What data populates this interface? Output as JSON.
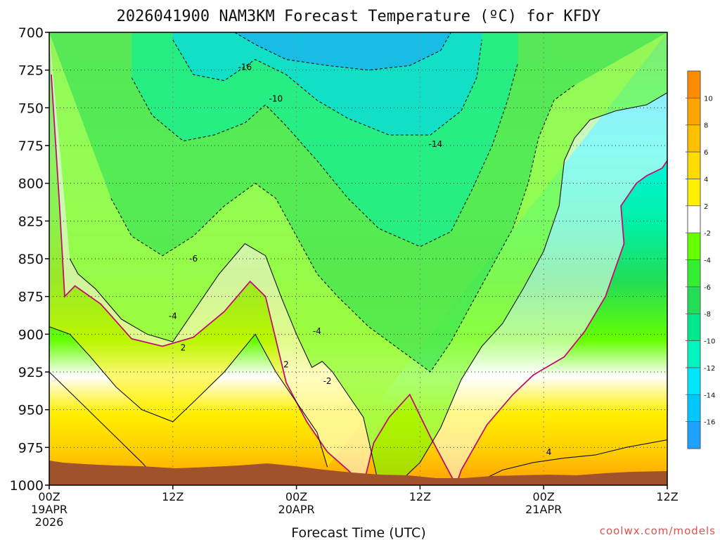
{
  "chart_data": {
    "type": "heatmap",
    "title": "2026041900 NAM3KM Forecast Temperature (ºC) for KFDY",
    "xlabel": "Forecast Time (UTC)",
    "credit": "coolwx.com/models",
    "x_ticks": [
      {
        "hours": 0,
        "label": "00Z",
        "sub1": "19APR",
        "sub2": "2026"
      },
      {
        "hours": 12,
        "label": "12Z",
        "sub1": "",
        "sub2": ""
      },
      {
        "hours": 24,
        "label": "00Z",
        "sub1": "20APR",
        "sub2": ""
      },
      {
        "hours": 36,
        "label": "12Z",
        "sub1": "",
        "sub2": ""
      },
      {
        "hours": 48,
        "label": "00Z",
        "sub1": "21APR",
        "sub2": ""
      },
      {
        "hours": 60,
        "label": "12Z",
        "sub1": "",
        "sub2": ""
      }
    ],
    "xlim": [
      0,
      60
    ],
    "y_ticks": [
      700,
      725,
      750,
      775,
      800,
      825,
      850,
      875,
      900,
      925,
      950,
      975,
      1000
    ],
    "ylim": [
      1000,
      700
    ],
    "y_reversed": true,
    "grid": true,
    "legend": "right",
    "colorbar": {
      "labels": [
        "10",
        "8",
        "6",
        "4",
        "2",
        "-2",
        "-4",
        "-6",
        "-8",
        "-10",
        "-12",
        "-14",
        "-16"
      ],
      "colors": [
        "#ff8c00",
        "#ffa500",
        "#ffc000",
        "#ffdc00",
        "#fff000",
        "#ffffff",
        "#66ff00",
        "#33ee33",
        "#22dd55",
        "#00e88c",
        "#00f5c0",
        "#00e6ff",
        "#00c8ff",
        "#1ea0ff"
      ]
    },
    "contour_labels": [
      {
        "text": "-16",
        "x": 19.0,
        "y": 723
      },
      {
        "text": "-14",
        "x": 37.5,
        "y": 774
      },
      {
        "text": "-10",
        "x": 22.0,
        "y": 744
      },
      {
        "text": "-6",
        "x": 14.0,
        "y": 850
      },
      {
        "text": "-4",
        "x": 12.0,
        "y": 888
      },
      {
        "text": "-4",
        "x": 26.0,
        "y": 898
      },
      {
        "text": "2",
        "x": 13.0,
        "y": 909
      },
      {
        "text": "2",
        "x": 23.0,
        "y": 920
      },
      {
        "text": "-2",
        "x": 27.0,
        "y": 931
      },
      {
        "text": "4",
        "x": 48.5,
        "y": 978
      }
    ],
    "isotherms": [
      {
        "value": 0,
        "color": "#c0106e",
        "points": [
          [
            0.2,
            728
          ],
          [
            1,
            815
          ],
          [
            1.5,
            875
          ],
          [
            2.5,
            868
          ],
          [
            5,
            880
          ],
          [
            8,
            903
          ],
          [
            11,
            908
          ],
          [
            14,
            902
          ],
          [
            17,
            885
          ],
          [
            19.5,
            865
          ],
          [
            21,
            875
          ],
          [
            23,
            932
          ],
          [
            25,
            958
          ],
          [
            27,
            978
          ],
          [
            29,
            990
          ],
          [
            30.5,
            1000
          ],
          [
            31.5,
            972
          ],
          [
            33,
            955
          ],
          [
            35,
            940
          ],
          [
            37,
            968
          ],
          [
            39.5,
            1000
          ],
          [
            40,
            990
          ],
          [
            42.5,
            960
          ],
          [
            45,
            940
          ],
          [
            47,
            927
          ],
          [
            50,
            915
          ],
          [
            52,
            898
          ],
          [
            54,
            875
          ],
          [
            55.8,
            840
          ],
          [
            55.5,
            815
          ],
          [
            57,
            800
          ],
          [
            58,
            795
          ],
          [
            59.5,
            790
          ],
          [
            60,
            785
          ]
        ]
      },
      {
        "value": -2,
        "color": "#111111",
        "points": [
          [
            2,
            850
          ],
          [
            2.8,
            860
          ],
          [
            4.5,
            870
          ],
          [
            7,
            890
          ],
          [
            9.5,
            900
          ],
          [
            12,
            905
          ],
          [
            14.5,
            880
          ],
          [
            16.5,
            860
          ],
          [
            19,
            840
          ],
          [
            21,
            848
          ],
          [
            22.5,
            875
          ],
          [
            24,
            900
          ],
          [
            25.5,
            922
          ],
          [
            26.5,
            918
          ],
          [
            27.5,
            925
          ],
          [
            28.5,
            935
          ],
          [
            30.5,
            955
          ],
          [
            31,
            970
          ],
          [
            32,
            1000
          ],
          [
            34,
            998
          ],
          [
            36,
            985
          ],
          [
            38,
            962
          ],
          [
            40,
            930
          ],
          [
            42,
            908
          ],
          [
            44,
            893
          ],
          [
            46,
            870
          ],
          [
            48,
            845
          ],
          [
            49.5,
            815
          ],
          [
            50,
            785
          ],
          [
            51,
            770
          ],
          [
            52.5,
            758
          ],
          [
            55,
            752
          ],
          [
            58,
            748
          ],
          [
            60,
            740
          ]
        ]
      },
      {
        "value": 2,
        "color": "#111111",
        "points": [
          [
            0,
            895
          ],
          [
            2,
            900
          ],
          [
            4,
            915
          ],
          [
            6.5,
            935
          ],
          [
            9,
            950
          ],
          [
            12,
            958
          ],
          [
            14,
            945
          ],
          [
            17,
            925
          ],
          [
            20,
            900
          ],
          [
            22,
            925
          ],
          [
            24,
            945
          ],
          [
            26,
            965
          ],
          [
            27,
            988
          ]
        ]
      },
      {
        "value": 4,
        "color": "#111111",
        "points": [
          [
            0,
            925
          ],
          [
            3,
            945
          ],
          [
            6,
            965
          ],
          [
            9,
            985
          ],
          [
            11,
            1000
          ]
        ]
      },
      {
        "value": 4,
        "color": "#111111",
        "points": [
          [
            41,
            1000
          ],
          [
            44,
            990
          ],
          [
            47,
            985
          ],
          [
            50,
            982
          ],
          [
            53,
            980
          ],
          [
            56,
            975
          ],
          [
            60,
            970
          ]
        ]
      },
      {
        "value": -6,
        "color": "#111111",
        "points": [
          [
            6,
            810
          ],
          [
            8,
            835
          ],
          [
            11,
            848
          ],
          [
            14,
            835
          ],
          [
            17,
            815
          ],
          [
            20,
            800
          ],
          [
            22,
            810
          ],
          [
            24,
            835
          ],
          [
            26,
            860
          ],
          [
            28,
            875
          ],
          [
            31,
            895
          ],
          [
            35,
            915
          ],
          [
            37,
            925
          ],
          [
            39,
            905
          ],
          [
            41,
            880
          ],
          [
            43,
            855
          ],
          [
            45,
            830
          ],
          [
            46.5,
            800
          ],
          [
            47.5,
            770
          ],
          [
            49,
            745
          ],
          [
            51,
            735
          ]
        ]
      },
      {
        "value": -10,
        "color": "#111111",
        "points": [
          [
            8,
            730
          ],
          [
            10,
            755
          ],
          [
            13,
            772
          ],
          [
            16,
            768
          ],
          [
            19,
            760
          ],
          [
            21,
            748
          ],
          [
            23,
            762
          ],
          [
            26,
            785
          ],
          [
            29,
            810
          ],
          [
            32,
            830
          ],
          [
            36,
            842
          ],
          [
            39,
            832
          ],
          [
            41,
            805
          ],
          [
            43,
            775
          ],
          [
            44.5,
            745
          ],
          [
            45.5,
            720
          ]
        ]
      },
      {
        "value": -14,
        "color": "#111111",
        "points": [
          [
            12,
            705
          ],
          [
            14,
            728
          ],
          [
            17,
            732
          ],
          [
            20,
            718
          ],
          [
            23,
            728
          ],
          [
            26,
            745
          ],
          [
            29,
            757
          ],
          [
            33,
            768
          ],
          [
            37,
            768
          ],
          [
            40,
            752
          ],
          [
            41.5,
            730
          ],
          [
            42,
            705
          ]
        ]
      },
      {
        "value": -16,
        "color": "#111111",
        "points": [
          [
            18,
            700
          ],
          [
            20,
            708
          ],
          [
            23,
            718
          ],
          [
            27,
            722
          ],
          [
            31,
            725
          ],
          [
            35,
            722
          ],
          [
            38,
            712
          ],
          [
            39,
            700
          ]
        ]
      }
    ]
  }
}
